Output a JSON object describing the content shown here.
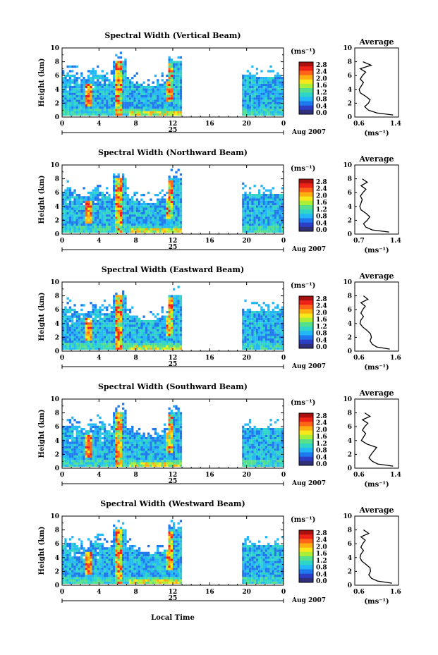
{
  "figure": {
    "xlabel": "Local Time",
    "day_label": "25",
    "month_label": "Aug 2007",
    "unit_label": "(ms⁻¹)",
    "profile_title": "Average",
    "profile_xlabel": "(ms⁻¹)",
    "colorbar_ticks": [
      "2.8",
      "2.4",
      "2.0",
      "1.6",
      "1.2",
      "0.8",
      "0.4",
      "0.0"
    ],
    "colorbar_colors": [
      "#30307a",
      "#2c3ec4",
      "#1e78ee",
      "#22b7f5",
      "#2fd6c7",
      "#57e08c",
      "#aaee38",
      "#f6e81b",
      "#ffae12",
      "#ff6418",
      "#ee2318",
      "#aa1010"
    ]
  },
  "chart_data": [
    {
      "type": "heatmap",
      "title": "Spectral Width (Vertical Beam)",
      "ylabel": "Height (km)",
      "xlabel": "Local Time",
      "x_ticks": [
        "0",
        "4",
        "8",
        "12",
        "16",
        "20",
        "0"
      ],
      "y_ticks": [
        "0",
        "2",
        "4",
        "6",
        "8",
        "10"
      ],
      "xlim": [
        0,
        24
      ],
      "ylim": [
        0,
        10
      ],
      "colorbar_range": [
        0,
        2.8
      ],
      "data_gap_hours": [
        13,
        19.5
      ],
      "profile": {
        "title": "Average",
        "xlim": [
          0.6,
          1.4
        ],
        "x_ticks": [
          "0.6",
          "1.4"
        ],
        "y_ticks": [
          "0",
          "2",
          "4",
          "6",
          "8",
          "10"
        ],
        "height_km": [
          0.3,
          0.6,
          1.0,
          1.5,
          2.0,
          2.5,
          3.0,
          3.5,
          4.0,
          4.5,
          5.0,
          5.5,
          6.0,
          6.5,
          7.0,
          7.5,
          8.0
        ],
        "width": [
          1.3,
          1.0,
          0.85,
          0.78,
          0.85,
          0.88,
          0.8,
          0.7,
          0.68,
          0.72,
          0.76,
          0.7,
          0.74,
          0.8,
          0.7,
          0.9,
          0.75
        ]
      }
    },
    {
      "type": "heatmap",
      "title": "Spectral Width (Northward Beam)",
      "ylabel": "Height (km)",
      "xlabel": "Local Time",
      "x_ticks": [
        "0",
        "4",
        "8",
        "12",
        "16",
        "20",
        "0"
      ],
      "y_ticks": [
        "0",
        "2",
        "4",
        "6",
        "8",
        "10"
      ],
      "xlim": [
        0,
        24
      ],
      "ylim": [
        0,
        10
      ],
      "colorbar_range": [
        0,
        2.8
      ],
      "data_gap_hours": [
        13,
        19.5
      ],
      "profile": {
        "title": "Average",
        "xlim": [
          0.7,
          1.4
        ],
        "x_ticks": [
          "0.7",
          "1.4"
        ],
        "y_ticks": [
          "0",
          "2",
          "4",
          "6",
          "8",
          "10"
        ],
        "height_km": [
          0.3,
          0.6,
          1.0,
          1.5,
          2.0,
          2.5,
          3.0,
          3.5,
          4.0,
          4.5,
          5.0,
          5.5,
          6.0,
          6.5,
          7.0,
          7.5,
          8.0
        ],
        "width": [
          1.25,
          0.98,
          0.88,
          0.84,
          0.9,
          0.94,
          0.88,
          0.8,
          0.78,
          0.8,
          0.82,
          0.79,
          0.83,
          0.88,
          0.8,
          0.9,
          0.82
        ]
      }
    },
    {
      "type": "heatmap",
      "title": "Spectral Width (Eastward Beam)",
      "ylabel": "Height (km)",
      "xlabel": "Local Time",
      "x_ticks": [
        "0",
        "4",
        "8",
        "12",
        "16",
        "20",
        "0"
      ],
      "y_ticks": [
        "0",
        "2",
        "4",
        "6",
        "8",
        "10"
      ],
      "xlim": [
        0,
        24
      ],
      "ylim": [
        0,
        10
      ],
      "colorbar_range": [
        0,
        2.8
      ],
      "data_gap_hours": [
        13,
        19.5
      ],
      "profile": {
        "title": "Average",
        "xlim": [
          0.6,
          1.6
        ],
        "x_ticks": [
          "0.6",
          "1.6"
        ],
        "y_ticks": [
          "0",
          "2",
          "4",
          "6",
          "8",
          "10"
        ],
        "height_km": [
          0.3,
          0.6,
          1.0,
          1.5,
          2.0,
          2.5,
          3.0,
          3.5,
          4.0,
          4.5,
          5.0,
          5.5,
          6.0,
          6.5,
          7.0,
          7.5,
          8.0
        ],
        "width": [
          1.4,
          1.1,
          1.0,
          0.95,
          0.98,
          0.96,
          0.88,
          0.78,
          0.72,
          0.74,
          0.8,
          0.74,
          0.78,
          0.84,
          0.74,
          0.9,
          0.8
        ]
      }
    },
    {
      "type": "heatmap",
      "title": "Spectral Width (Southward Beam)",
      "ylabel": "Height (km)",
      "xlabel": "Local Time",
      "x_ticks": [
        "0",
        "4",
        "8",
        "12",
        "16",
        "20",
        "0"
      ],
      "y_ticks": [
        "0",
        "2",
        "4",
        "6",
        "8",
        "10"
      ],
      "xlim": [
        0,
        24
      ],
      "ylim": [
        0,
        10
      ],
      "colorbar_range": [
        0,
        2.8
      ],
      "data_gap_hours": [
        13,
        19.5
      ],
      "profile": {
        "title": "Average",
        "xlim": [
          0.6,
          1.4
        ],
        "x_ticks": [
          "0.6",
          "1.4"
        ],
        "y_ticks": [
          "0",
          "2",
          "4",
          "6",
          "8",
          "10"
        ],
        "height_km": [
          0.3,
          0.6,
          1.0,
          1.5,
          2.0,
          2.5,
          3.0,
          3.5,
          4.0,
          4.5,
          5.0,
          5.5,
          6.0,
          6.5,
          7.0,
          7.5,
          8.0
        ],
        "width": [
          1.3,
          1.02,
          0.92,
          0.86,
          0.9,
          0.95,
          1.0,
          0.82,
          0.72,
          0.76,
          0.8,
          0.74,
          0.78,
          0.84,
          0.74,
          0.88,
          0.78
        ]
      }
    },
    {
      "type": "heatmap",
      "title": "Spectral Width (Westward Beam)",
      "ylabel": "Height (km)",
      "xlabel": "Local Time",
      "x_ticks": [
        "0",
        "4",
        "8",
        "12",
        "16",
        "20",
        "0"
      ],
      "y_ticks": [
        "0",
        "2",
        "4",
        "6",
        "8",
        "10"
      ],
      "xlim": [
        0,
        24
      ],
      "ylim": [
        0,
        10
      ],
      "colorbar_range": [
        0,
        2.8
      ],
      "data_gap_hours": [
        13,
        19.5
      ],
      "profile": {
        "title": "Average",
        "xlim": [
          0.6,
          1.6
        ],
        "x_ticks": [
          "0.6",
          "1.6"
        ],
        "y_ticks": [
          "0",
          "2",
          "4",
          "6",
          "8",
          "10"
        ],
        "height_km": [
          0.3,
          0.6,
          1.0,
          1.5,
          2.0,
          2.5,
          3.0,
          3.5,
          4.0,
          4.5,
          5.0,
          5.5,
          6.0,
          6.5,
          7.0,
          7.5,
          8.0
        ],
        "width": [
          1.45,
          1.12,
          0.98,
          0.92,
          0.96,
          0.95,
          0.86,
          0.76,
          0.72,
          0.74,
          0.8,
          0.74,
          0.78,
          0.84,
          0.74,
          0.92,
          0.8
        ]
      }
    }
  ]
}
